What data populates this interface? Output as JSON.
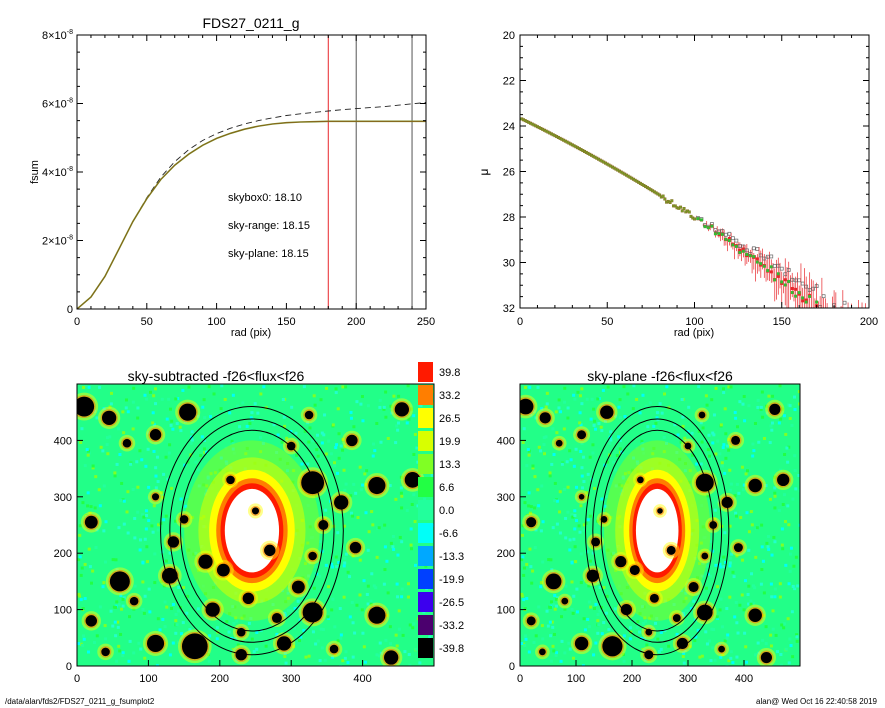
{
  "chart_data": [
    {
      "type": "line",
      "title": "FDS27_0211_g",
      "xlabel": "rad (pix)",
      "ylabel": "fsum",
      "xlim": [
        0,
        250
      ],
      "ylim": [
        0,
        8e-08
      ],
      "xticks": [
        "0",
        "50",
        "100",
        "150",
        "200",
        "250"
      ],
      "yticks": [
        {
          "m": "0",
          "e": ""
        },
        {
          "m": "2×10",
          "e": "-8"
        },
        {
          "m": "4×10",
          "e": "-8"
        },
        {
          "m": "6×10",
          "e": "-8"
        },
        {
          "m": "8×10",
          "e": "-8"
        }
      ],
      "series": [
        {
          "kind": "dashed",
          "x": [
            0,
            10,
            20,
            30,
            40,
            50,
            60,
            70,
            80,
            90,
            100,
            110,
            120,
            130,
            140,
            150,
            160,
            170,
            180,
            190,
            200,
            210,
            220,
            230,
            240,
            250
          ],
          "y": [
            0,
            3.5e-09,
            9.5e-09,
            1.75e-08,
            2.55e-08,
            3.25e-08,
            3.85e-08,
            4.3e-08,
            4.65e-08,
            4.92e-08,
            5.12e-08,
            5.28e-08,
            5.4e-08,
            5.5e-08,
            5.58e-08,
            5.65e-08,
            5.7e-08,
            5.74e-08,
            5.78e-08,
            5.82e-08,
            5.85e-08,
            5.88e-08,
            5.91e-08,
            5.95e-08,
            5.99e-08,
            6.03e-08
          ]
        },
        {
          "kind": "solid",
          "x": [
            0,
            10,
            20,
            30,
            40,
            50,
            60,
            70,
            80,
            90,
            100,
            110,
            120,
            130,
            140,
            150,
            160,
            170,
            180,
            190,
            200,
            210,
            220,
            230,
            240,
            250
          ],
          "y": [
            0,
            3.5e-09,
            9.5e-09,
            1.75e-08,
            2.55e-08,
            3.22e-08,
            3.78e-08,
            4.2e-08,
            4.52e-08,
            4.78e-08,
            4.98e-08,
            5.13e-08,
            5.25e-08,
            5.34e-08,
            5.4e-08,
            5.44e-08,
            5.46e-08,
            5.47e-08,
            5.48e-08,
            5.48e-08,
            5.48e-08,
            5.48e-08,
            5.48e-08,
            5.48e-08,
            5.48e-08,
            5.48e-08
          ]
        }
      ],
      "vlines": [
        {
          "x": 180,
          "color": "#e8262b"
        },
        {
          "x": 200,
          "color": "#555555"
        },
        {
          "x": 240,
          "color": "#555555"
        }
      ],
      "annotations": [
        {
          "text": "skybox0: 18.10",
          "color": "#000000"
        },
        {
          "text": "sky-range: 18.15",
          "color": "#e8262b"
        },
        {
          "text": "sky-plane: 18.15",
          "color": "#22c322"
        }
      ]
    },
    {
      "type": "scatter",
      "title": "",
      "xlabel": "rad (pix)",
      "ylabel": "μ",
      "xlim": [
        0,
        200
      ],
      "ylim": [
        32,
        20
      ],
      "xticks": [
        "0",
        "50",
        "100",
        "150",
        "200"
      ],
      "yticks": [
        "20",
        "22",
        "24",
        "26",
        "28",
        "30",
        "32"
      ],
      "model": {
        "x0": 1,
        "x1": 200,
        "mu0": 23.65,
        "slope": 0.0375,
        "noise_start": 100,
        "noise_amp": 1.8
      }
    },
    {
      "type": "heatmap",
      "title": "sky-subtracted -f26<flux<f26",
      "xlim": [
        0,
        500
      ],
      "ylim": [
        0,
        500
      ],
      "xticks": [
        "0",
        "100",
        "200",
        "300",
        "400"
      ],
      "yticks": [
        "0",
        "100",
        "200",
        "300",
        "400"
      ]
    },
    {
      "type": "heatmap",
      "title": "sky-plane -f26<flux<f26",
      "xlim": [
        0,
        500
      ],
      "ylim": [
        0,
        500
      ],
      "xticks": [
        "0",
        "100",
        "200",
        "300",
        "400"
      ],
      "yticks": [
        "0",
        "100",
        "200",
        "300",
        "400"
      ]
    }
  ],
  "colorbar": {
    "levels": [
      {
        "label": "39.8",
        "color": "#ff1a00"
      },
      {
        "label": "33.2",
        "color": "#ff7e00"
      },
      {
        "label": "26.5",
        "color": "#ffff00"
      },
      {
        "label": "19.9",
        "color": "#d8ff00"
      },
      {
        "label": "13.3",
        "color": "#80ff24"
      },
      {
        "label": "6.6",
        "color": "#22ff44"
      },
      {
        "label": "0.0",
        "color": "#22ff9c"
      },
      {
        "label": "-6.6",
        "color": "#00fff8"
      },
      {
        "label": "-13.3",
        "color": "#00a8ff"
      },
      {
        "label": "-19.9",
        "color": "#0040ff"
      },
      {
        "label": "-26.5",
        "color": "#3c00ee"
      },
      {
        "label": "-33.2",
        "color": "#4b006e"
      },
      {
        "label": "-39.8",
        "color": "#000000"
      }
    ]
  },
  "footer": {
    "left": "/data/alan/fds2/FDS27_0211_g_fsumplot2",
    "right": "alan@  Wed Oct 16 22:40:58 2019"
  },
  "colors": {
    "profile_brown": "#8a5a1a",
    "profile_olive": "#7a9a2a",
    "marker_red": "#e8262b",
    "marker_green": "#33bb33",
    "marker_gray": "#666666"
  }
}
